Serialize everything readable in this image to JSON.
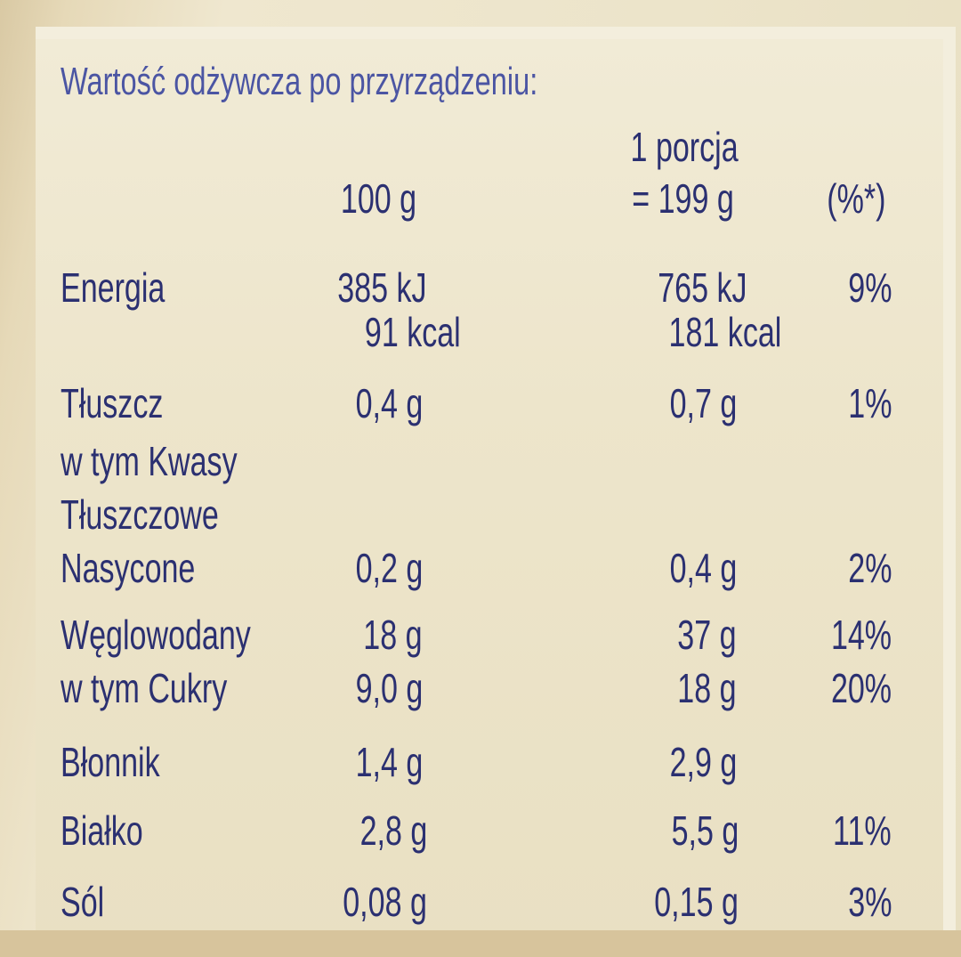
{
  "title": "Wartość odżywcza po przyrządzeniu:",
  "headers": {
    "col1": "100 g",
    "col2_line1": "1 porcja",
    "col2_line2": "= 199 g",
    "col3": "(%*)"
  },
  "rows": [
    {
      "label": "Energia",
      "v1": "385  kJ",
      "v2": "765 kJ",
      "pct": "9%"
    },
    {
      "label": "",
      "v1": "91  kcal",
      "v2": "181 kcal",
      "pct": ""
    },
    {
      "label": "Tłuszcz",
      "v1": "0,4 g",
      "v2": "0,7 g",
      "pct": "1%"
    },
    {
      "label": "w tym Kwasy",
      "v1": "",
      "v2": "",
      "pct": ""
    },
    {
      "label": "Tłuszczowe",
      "v1": "",
      "v2": "",
      "pct": ""
    },
    {
      "label": "Nasycone",
      "v1": "0,2 g",
      "v2": "0,4 g",
      "pct": "2%"
    },
    {
      "label": "Węglowodany",
      "v1": "18 g",
      "v2": "37 g",
      "pct": "14%"
    },
    {
      "label": "w tym Cukry",
      "v1": "9,0 g",
      "v2": "18 g",
      "pct": "20%"
    },
    {
      "label": "Błonnik",
      "v1": "1,4 g",
      "v2": "2,9 g",
      "pct": ""
    },
    {
      "label": "Białko",
      "v1": "2,8 g",
      "v2": "5,5 g",
      "pct": "11%"
    },
    {
      "label": "Sól",
      "v1": "0,08 g",
      "v2": "0,15 g",
      "pct": "3%"
    }
  ]
}
